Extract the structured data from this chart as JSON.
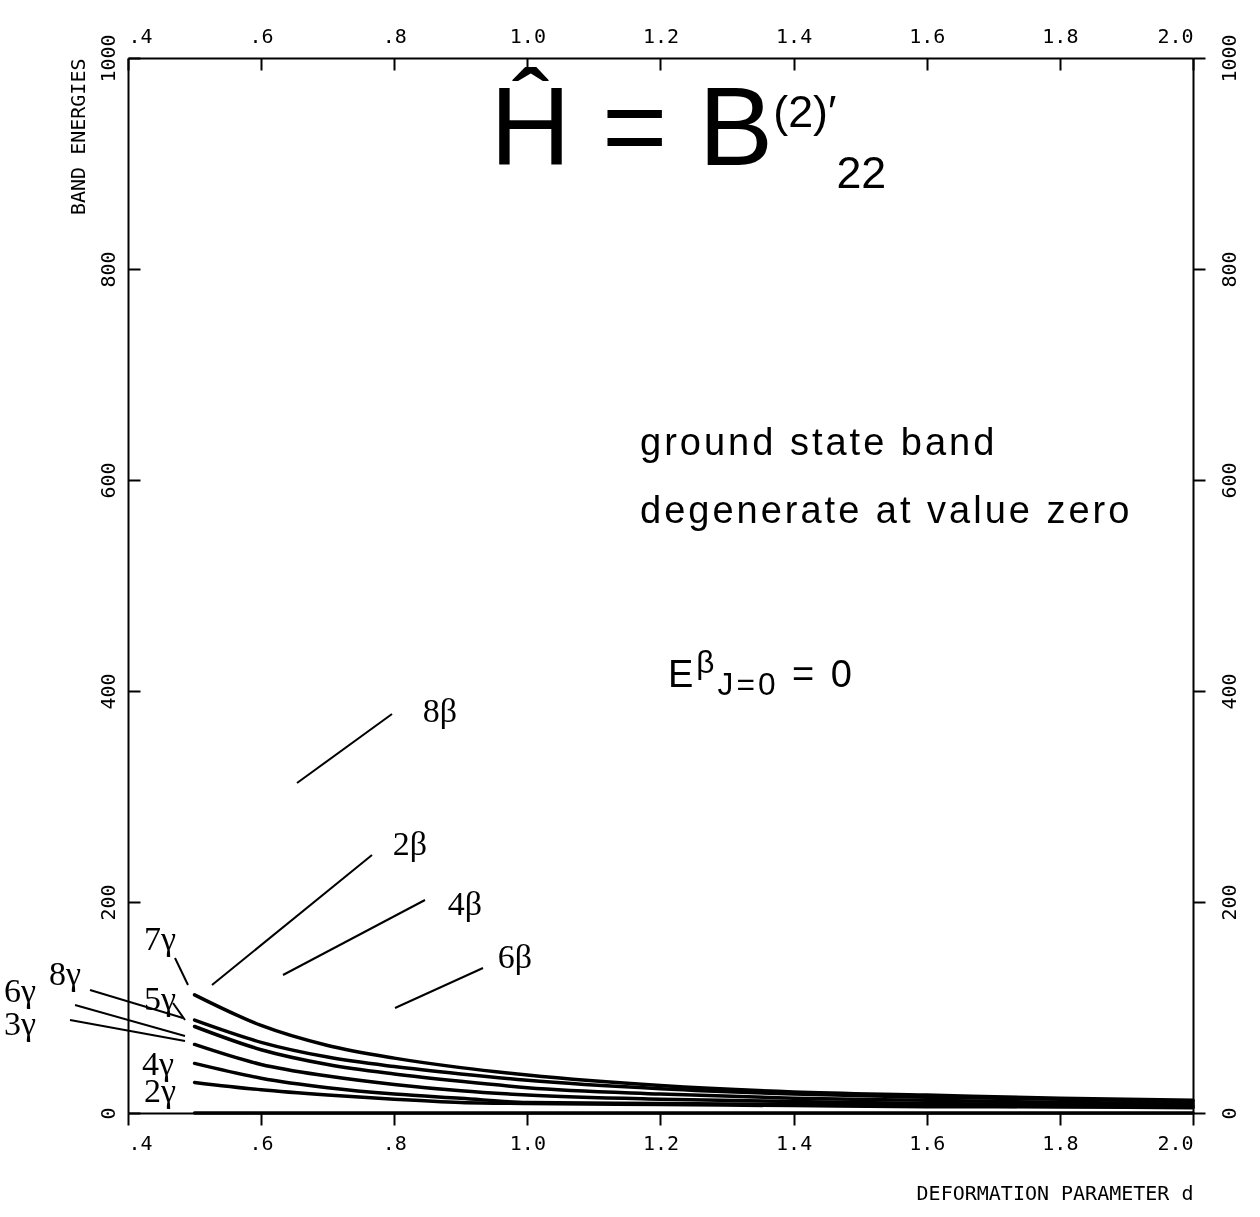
{
  "chart_data": {
    "type": "line",
    "title": "Ĥ = B$^{(2)′}$$_{22}$",
    "xlabel": "DEFORMATION PARAMETER d",
    "ylabel": "BAND ENERGIES",
    "x": [
      0.5,
      0.6,
      0.7,
      0.8,
      0.9,
      1.0,
      1.2,
      1.4,
      1.6,
      1.8,
      2.0
    ],
    "series": [
      {
        "color": "#000000",
        "values": [
          112,
          83,
          64,
          52,
          43,
          36,
          26,
          20,
          17,
          14,
          12
        ]
      },
      {
        "color": "#000000",
        "values": [
          88,
          67,
          53,
          44,
          37,
          31,
          23,
          18,
          15,
          13,
          11
        ]
      },
      {
        "color": "#000000",
        "values": [
          82,
          60,
          46,
          37,
          30,
          24,
          18,
          14,
          12,
          10,
          9
        ]
      },
      {
        "color": "#000000",
        "values": [
          65,
          46,
          35,
          27,
          21,
          17,
          13,
          11,
          9,
          8,
          7
        ]
      },
      {
        "color": "#000000",
        "values": [
          47,
          33,
          24,
          18,
          14,
          10,
          9,
          8,
          7,
          6,
          6
        ]
      },
      {
        "color": "#000000",
        "values": [
          29,
          22,
          17,
          13,
          10,
          9,
          8,
          7,
          6,
          6,
          5
        ]
      },
      {
        "color": "#000000",
        "x": [
          0.5,
          2.0
        ],
        "values": [
          0,
          0
        ]
      }
    ],
    "xlim": [
      0.4,
      2.0
    ],
    "xticks": [
      {
        "value": 0.4,
        "label": ".4"
      },
      {
        "value": 0.6,
        "label": ".6"
      },
      {
        "value": 0.8,
        "label": ".8"
      },
      {
        "value": 1.0,
        "label": "1.0"
      },
      {
        "value": 1.2,
        "label": "1.2"
      },
      {
        "value": 1.4,
        "label": "1.4"
      },
      {
        "value": 1.6,
        "label": "1.6"
      },
      {
        "value": 1.8,
        "label": "1.8"
      },
      {
        "value": 2.0,
        "label": "2.0"
      }
    ],
    "x2lim": [
      0.4,
      2.0
    ],
    "x2ticks": [
      {
        "value": 0.4,
        "label": ".4"
      },
      {
        "value": 0.6,
        "label": ".6"
      },
      {
        "value": 0.8,
        "label": ".8"
      },
      {
        "value": 1.0,
        "label": "1.0"
      },
      {
        "value": 1.2,
        "label": "1.2"
      },
      {
        "value": 1.4,
        "label": "1.4"
      },
      {
        "value": 1.6,
        "label": "1.6"
      },
      {
        "value": 1.8,
        "label": "1.8"
      },
      {
        "value": 2.0,
        "label": "2.0"
      }
    ],
    "ylim": [
      0,
      1000
    ],
    "yticks": [
      0,
      200,
      400,
      600,
      800,
      1000
    ],
    "y2lim": [
      0,
      1000
    ],
    "y2ticks": [
      0,
      200,
      400,
      600,
      800,
      1000
    ],
    "grid": false,
    "legend": false,
    "marker": "none",
    "line_style": "solid",
    "annotations": [
      "7γ",
      "8γ",
      "6γ",
      "3γ",
      "5γ",
      "4γ",
      "2γ",
      "8β",
      "2β",
      "4β",
      "6β",
      "ground state band degenerate at value zero",
      "E$^{β}$$_{J=0}$ = 0"
    ]
  }
}
